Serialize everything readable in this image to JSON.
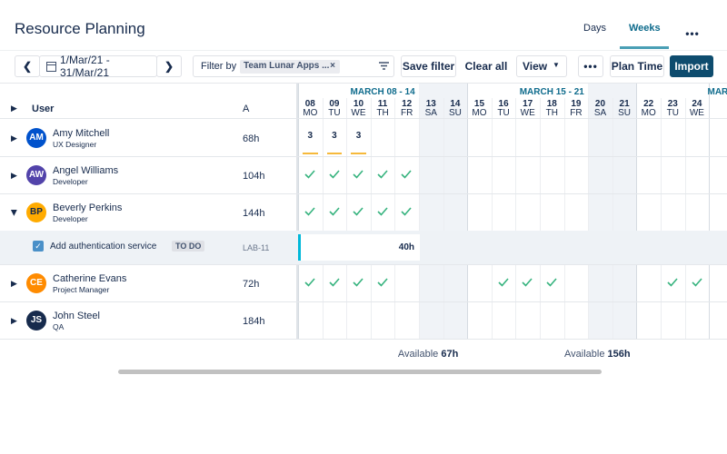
{
  "header": {
    "title": "Resource Planning",
    "tabs": [
      "Days",
      "Weeks"
    ],
    "active_tab": 1
  },
  "toolbar": {
    "date_range": "1/Mar/21 - 31/Mar/21",
    "filter_label": "Filter by",
    "filter_chip": "Team Lunar Apps ...",
    "save_filter": "Save filter",
    "clear_all": "Clear all",
    "view": "View",
    "plan_time": "Plan Time",
    "import": "Import"
  },
  "table": {
    "user_header": "User",
    "avail_header": "A",
    "weeks": [
      "MARCH 08 - 14",
      "MARCH 15 - 21",
      "MARC"
    ],
    "days": [
      {
        "date": "08",
        "weekday": "MO"
      },
      {
        "date": "09",
        "weekday": "TU"
      },
      {
        "date": "10",
        "weekday": "WE"
      },
      {
        "date": "11",
        "weekday": "TH"
      },
      {
        "date": "12",
        "weekday": "FR"
      },
      {
        "date": "13",
        "weekday": "SA",
        "weekend": true
      },
      {
        "date": "14",
        "weekday": "SU",
        "weekend": true
      },
      {
        "date": "15",
        "weekday": "MO"
      },
      {
        "date": "16",
        "weekday": "TU"
      },
      {
        "date": "17",
        "weekday": "WE"
      },
      {
        "date": "18",
        "weekday": "TH"
      },
      {
        "date": "19",
        "weekday": "FR"
      },
      {
        "date": "20",
        "weekday": "SA",
        "weekend": true
      },
      {
        "date": "21",
        "weekday": "SU",
        "weekend": true
      },
      {
        "date": "22",
        "weekday": "MO"
      },
      {
        "date": "23",
        "weekday": "TU"
      },
      {
        "date": "24",
        "weekday": "WE"
      }
    ],
    "rows": [
      {
        "initials": "AM",
        "name": "Amy Mitchell",
        "role": "UX Designer",
        "hours": "68h",
        "avatar_color": "#0052cc",
        "days": [
          3,
          3,
          3,
          null,
          null,
          null,
          null,
          null,
          null,
          null,
          null,
          null,
          null,
          null,
          null,
          null,
          null
        ]
      },
      {
        "initials": "AW",
        "name": "Angel Williams",
        "role": "Developer",
        "hours": "104h",
        "avatar_color": "#5243aa",
        "days": [
          true,
          true,
          true,
          true,
          true,
          null,
          null,
          null,
          null,
          null,
          null,
          null,
          null,
          null,
          null,
          null,
          null
        ]
      },
      {
        "initials": "BP",
        "name": "Beverly Perkins",
        "role": "Developer",
        "hours": "144h",
        "avatar_color": "#ffab00",
        "expanded": true,
        "days": [
          true,
          true,
          true,
          true,
          true,
          null,
          null,
          null,
          null,
          null,
          null,
          null,
          null,
          null,
          null,
          null,
          null
        ],
        "task": {
          "title": "Add authentication service",
          "status": "TO DO",
          "key": "LAB-11",
          "estimate": "40h"
        }
      },
      {
        "initials": "CE",
        "name": "Catherine Evans",
        "role": "Project Manager",
        "hours": "72h",
        "avatar_color": "#ff8b00",
        "days": [
          true,
          true,
          true,
          true,
          null,
          null,
          null,
          null,
          true,
          true,
          true,
          null,
          null,
          null,
          null,
          true,
          true
        ]
      },
      {
        "initials": "JS",
        "name": "John Steel",
        "role": "QA",
        "hours": "184h",
        "avatar_color": "#172b4d",
        "days": [
          null,
          null,
          null,
          null,
          null,
          null,
          null,
          null,
          null,
          null,
          null,
          null,
          null,
          null,
          null,
          null,
          null
        ]
      }
    ]
  },
  "footer": [
    {
      "label": "Available",
      "value": "67h"
    },
    {
      "label": "Available",
      "value": "156h"
    }
  ]
}
